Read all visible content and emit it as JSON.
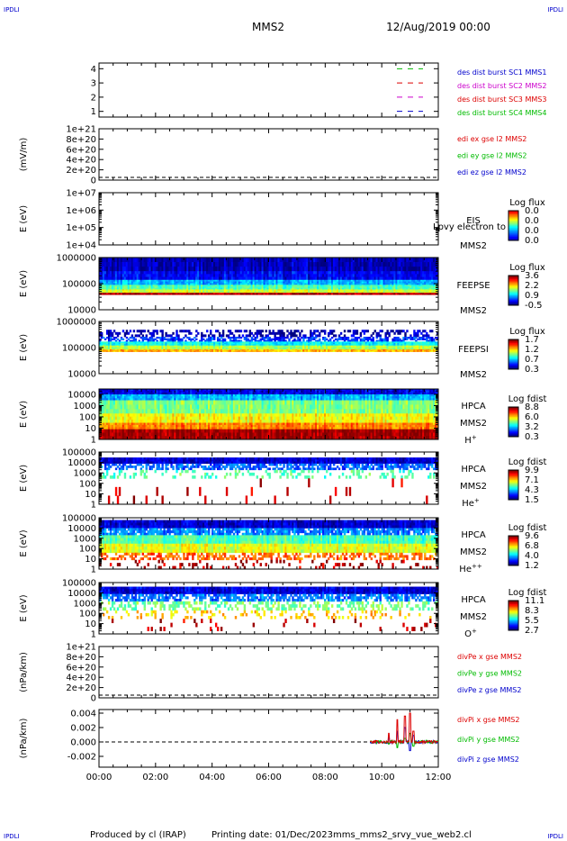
{
  "corner_tag": "IPDLI",
  "header": {
    "title": "MMS2",
    "datetime": "12/Aug/2019 00:00"
  },
  "footer": {
    "produced_by": "Produced by cl (IRAP)",
    "printing_date": "Printing date: 01/Dec/2023",
    "file": "mms_mms2_srvy_vue_web2.cl"
  },
  "time_axis": {
    "start": "00:00",
    "end": "12:00",
    "ticks": [
      "00:00",
      "02:00",
      "04:00",
      "06:00",
      "08:00",
      "10:00",
      "12:00"
    ]
  },
  "chart_data": [
    {
      "type": "line",
      "panel": "dist-burst",
      "ylabel": "",
      "yticks": [
        "1",
        "2",
        "3",
        "4"
      ],
      "ylim": [
        0.6,
        4.4
      ],
      "legend": [
        {
          "label": "des dist burst SC1 MMS1",
          "color": "#0000cc"
        },
        {
          "label": "des dist burst SC2 MMS2",
          "color": "#cc00cc"
        },
        {
          "label": "des dist burst SC3 MMS3",
          "color": "#dd0000"
        },
        {
          "label": "des dist burst SC4 MMS4",
          "color": "#00bb00"
        }
      ],
      "series": [
        {
          "name": "des dist burst SC1 MMS1",
          "y": 1,
          "color": "#0000cc"
        },
        {
          "name": "des dist burst SC2 MMS2",
          "y": 2,
          "color": "#cc00cc"
        },
        {
          "name": "des dist burst SC3 MMS3",
          "y": 3,
          "color": "#dd0000"
        },
        {
          "name": "des dist burst SC4 MMS4",
          "y": 4,
          "color": "#00bb00"
        }
      ]
    },
    {
      "type": "line",
      "panel": "edi-e",
      "ylabel": "(mV/m)",
      "yticks": [
        "0",
        "2e+20",
        "4e+20",
        "6e+20",
        "8e+20",
        "1e+21"
      ],
      "ylim": [
        0,
        1e+21
      ],
      "legend": [
        {
          "label": "edi ex gse l2 MMS2",
          "color": "#dd0000"
        },
        {
          "label": "edi ey gse l2 MMS2",
          "color": "#00bb00"
        },
        {
          "label": "edi ez gse l2 MMS2",
          "color": "#0000cc"
        }
      ]
    },
    {
      "type": "heatmap",
      "panel": "eis",
      "ylabel": "E (eV)",
      "yticks": [
        "1e+04",
        "1e+05",
        "1e+06",
        "1e+07"
      ],
      "ylim": [
        10000.0,
        10000000.0
      ],
      "log_y": true,
      "instrument": "EIS",
      "spacecraft": "MMS2",
      "overlay_text": "Lpvy electron to",
      "colorbar": {
        "title": "Log flux",
        "ticks": [
          "0.0",
          "0.0",
          "0.0",
          "0.0"
        ]
      },
      "empty": true
    },
    {
      "type": "heatmap",
      "panel": "feepse",
      "ylabel": "E (eV)",
      "yticks": [
        "10000",
        "100000",
        "1000000"
      ],
      "ylim": [
        10000.0,
        1000000.0
      ],
      "log_y": true,
      "instrument": "FEEPSE",
      "spacecraft": "MMS2",
      "colorbar": {
        "title": "Log flux",
        "ticks": [
          "3.6",
          "2.2",
          "0.9",
          "-0.5"
        ]
      },
      "bands": [
        {
          "e_from": 1000000,
          "e_to": 300000,
          "level": 0.05
        },
        {
          "e_from": 300000,
          "e_to": 140000,
          "level": 0.12
        },
        {
          "e_from": 140000,
          "e_to": 90000,
          "level": 0.3
        },
        {
          "e_from": 90000,
          "e_to": 60000,
          "level": 0.45
        },
        {
          "e_from": 60000,
          "e_to": 45000,
          "level": 0.58
        },
        {
          "e_from": 45000,
          "e_to": 38000,
          "level": 0.95
        }
      ],
      "seed": 11
    },
    {
      "type": "heatmap",
      "panel": "feepsi",
      "ylabel": "E (eV)",
      "yticks": [
        "10000",
        "100000",
        "1000000"
      ],
      "ylim": [
        10000.0,
        1000000.0
      ],
      "log_y": true,
      "instrument": "FEEPSI",
      "spacecraft": "MMS2",
      "colorbar": {
        "title": "Log flux",
        "ticks": [
          "1.7",
          "1.2",
          "0.7",
          "0.3"
        ]
      },
      "bands": [
        {
          "e_from": 480000,
          "e_to": 260000,
          "level": 0.05,
          "gaps": 0.55
        },
        {
          "e_from": 260000,
          "e_to": 170000,
          "level": 0.18,
          "gaps": 0.35
        },
        {
          "e_from": 170000,
          "e_to": 120000,
          "level": 0.38
        },
        {
          "e_from": 120000,
          "e_to": 85000,
          "level": 0.55
        },
        {
          "e_from": 85000,
          "e_to": 70000,
          "level": 0.7
        }
      ],
      "seed": 23
    },
    {
      "type": "heatmap",
      "panel": "hpca-h",
      "ylabel": "E (eV)",
      "yticks": [
        "1",
        "10",
        "100",
        "1000",
        "10000"
      ],
      "ylim": [
        1,
        30000
      ],
      "log_y": true,
      "instrument": "HPCA",
      "spacecraft": "MMS2",
      "species": "H+",
      "colorbar": {
        "title": "Log fdist",
        "ticks": [
          "8.8",
          "6.0",
          "3.2",
          "0.3"
        ]
      },
      "bands": [
        {
          "e_from": 30000,
          "e_to": 10000,
          "level": 0.1
        },
        {
          "e_from": 10000,
          "e_to": 3000,
          "level": 0.3
        },
        {
          "e_from": 3000,
          "e_to": 200,
          "level": 0.5
        },
        {
          "e_from": 200,
          "e_to": 30,
          "level": 0.62
        },
        {
          "e_from": 30,
          "e_to": 8,
          "level": 0.75
        },
        {
          "e_from": 8,
          "e_to": 1,
          "level": 0.97
        }
      ],
      "seed": 5
    },
    {
      "type": "heatmap",
      "panel": "hpca-he1",
      "ylabel": "E (eV)",
      "yticks": [
        "1",
        "10",
        "100",
        "1000",
        "10000",
        "100000"
      ],
      "ylim": [
        1,
        100000
      ],
      "log_y": true,
      "instrument": "HPCA",
      "spacecraft": "MMS2",
      "species": "He+",
      "colorbar": {
        "title": "Log fdist",
        "ticks": [
          "9.9",
          "7.1",
          "4.3",
          "1.5"
        ]
      },
      "bands": [
        {
          "e_from": 30000,
          "e_to": 8000,
          "level": 0.08
        },
        {
          "e_from": 8000,
          "e_to": 2000,
          "level": 0.22,
          "gaps": 0.4
        },
        {
          "e_from": 2000,
          "e_to": 300,
          "level": 0.45,
          "gaps": 0.75
        },
        {
          "e_from": 300,
          "e_to": 1,
          "level": 0.92,
          "gaps": 0.96
        }
      ],
      "seed": 31
    },
    {
      "type": "heatmap",
      "panel": "hpca-he2",
      "ylabel": "E (eV)",
      "yticks": [
        "1",
        "10",
        "100",
        "1000",
        "10000",
        "100000"
      ],
      "ylim": [
        1,
        100000
      ],
      "log_y": true,
      "instrument": "HPCA",
      "spacecraft": "MMS2",
      "species": "He++",
      "colorbar": {
        "title": "Log fdist",
        "ticks": [
          "9.6",
          "6.8",
          "4.0",
          "1.2"
        ]
      },
      "bands": [
        {
          "e_from": 60000,
          "e_to": 10000,
          "level": 0.08
        },
        {
          "e_from": 10000,
          "e_to": 2000,
          "level": 0.25,
          "gaps": 0.2
        },
        {
          "e_from": 2000,
          "e_to": 300,
          "level": 0.45
        },
        {
          "e_from": 300,
          "e_to": 40,
          "level": 0.6
        },
        {
          "e_from": 40,
          "e_to": 8,
          "level": 0.78,
          "gaps": 0.5
        },
        {
          "e_from": 8,
          "e_to": 1,
          "level": 0.95,
          "gaps": 0.85
        }
      ],
      "seed": 47
    },
    {
      "type": "heatmap",
      "panel": "hpca-o",
      "ylabel": "E (eV)",
      "yticks": [
        "1",
        "10",
        "100",
        "1000",
        "10000",
        "100000"
      ],
      "ylim": [
        1,
        100000
      ],
      "log_y": true,
      "instrument": "HPCA",
      "spacecraft": "MMS2",
      "species": "O+",
      "colorbar": {
        "title": "Log fdist",
        "ticks": [
          "11.1",
          "8.3",
          "5.5",
          "2.7"
        ]
      },
      "bands": [
        {
          "e_from": 40000,
          "e_to": 8000,
          "level": 0.1
        },
        {
          "e_from": 8000,
          "e_to": 1500,
          "level": 0.25,
          "gaps": 0.35
        },
        {
          "e_from": 1500,
          "e_to": 200,
          "level": 0.5,
          "gaps": 0.6
        },
        {
          "e_from": 200,
          "e_to": 30,
          "level": 0.68,
          "gaps": 0.8
        },
        {
          "e_from": 30,
          "e_to": 2,
          "level": 0.95,
          "gaps": 0.93
        }
      ],
      "seed": 59
    },
    {
      "type": "line",
      "panel": "divpe",
      "ylabel": "(nPa/km)",
      "yticks": [
        "0",
        "2e+20",
        "4e+20",
        "6e+20",
        "8e+20",
        "1e+21"
      ],
      "ylim": [
        0,
        1e+21
      ],
      "legend": [
        {
          "label": "divPe x gse MMS2",
          "color": "#dd0000"
        },
        {
          "label": "divPe y gse MMS2",
          "color": "#00bb00"
        },
        {
          "label": "divPe z gse MMS2",
          "color": "#0000cc"
        }
      ]
    },
    {
      "type": "line",
      "panel": "divpi",
      "ylabel": "(nPa/km)",
      "yticks": [
        "-0.002",
        "0.000",
        "0.002",
        "0.004"
      ],
      "ylim": [
        -0.0035,
        0.0045
      ],
      "legend": [
        {
          "label": "divPi x gse MMS2",
          "color": "#dd0000"
        },
        {
          "label": "divPi y gse MMS2",
          "color": "#00bb00"
        },
        {
          "label": "divPi z gse MMS2",
          "color": "#0000cc"
        }
      ],
      "data_start_hour": 9.6,
      "spikes": [
        {
          "hour": 10.25,
          "x": 0.0012,
          "y": -0.0003,
          "z": 0.0008
        },
        {
          "hour": 10.55,
          "x": 0.0031,
          "y": -0.0008,
          "z": 0.0015
        },
        {
          "hour": 10.82,
          "x": 0.0036,
          "y": 0.0005,
          "z": 0.002
        },
        {
          "hour": 11.0,
          "x": 0.004,
          "y": 0.0012,
          "z": -0.0012
        },
        {
          "hour": 11.12,
          "x": 0.0015,
          "y": -0.0006,
          "z": 0.0009
        }
      ]
    }
  ]
}
